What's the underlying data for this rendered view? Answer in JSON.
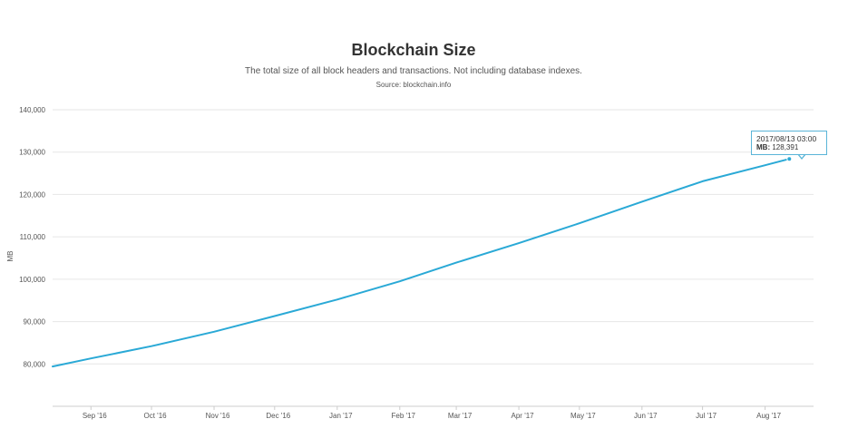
{
  "chart_data": {
    "type": "line",
    "title": "Blockchain Size",
    "subtitle": "The total size of all block headers and transactions. Not including database indexes.",
    "source": "Source: blockchain.info",
    "ylabel": "MB",
    "xlabel": "",
    "ylim": [
      70000,
      140000
    ],
    "y_ticks": [
      {
        "value": 80000,
        "label": "80,000"
      },
      {
        "value": 90000,
        "label": "90,000"
      },
      {
        "value": 100000,
        "label": "100,000"
      },
      {
        "value": 110000,
        "label": "110,000"
      },
      {
        "value": 120000,
        "label": "120,000"
      },
      {
        "value": 130000,
        "label": "130,000"
      },
      {
        "value": 140000,
        "label": "140,000"
      }
    ],
    "x_range": [
      "2016-08-13",
      "2017-08-25"
    ],
    "x_ticks": [
      {
        "date": "2016-09-01",
        "label": "Sep '16"
      },
      {
        "date": "2016-10-01",
        "label": "Oct '16"
      },
      {
        "date": "2016-11-01",
        "label": "Nov '16"
      },
      {
        "date": "2016-12-01",
        "label": "Dec '16"
      },
      {
        "date": "2017-01-01",
        "label": "Jan '17"
      },
      {
        "date": "2017-02-01",
        "label": "Feb '17"
      },
      {
        "date": "2017-03-01",
        "label": "Mar '17"
      },
      {
        "date": "2017-04-01",
        "label": "Apr '17"
      },
      {
        "date": "2017-05-01",
        "label": "May '17"
      },
      {
        "date": "2017-06-01",
        "label": "Jun '17"
      },
      {
        "date": "2017-07-01",
        "label": "Jul '17"
      },
      {
        "date": "2017-08-01",
        "label": "Aug '17"
      }
    ],
    "grid": true,
    "legend": "none",
    "series": [
      {
        "color": "#2aa9d6",
        "points": [
          {
            "x": "2016-08-13",
            "y": 79400
          },
          {
            "x": "2016-09-01",
            "y": 81300
          },
          {
            "x": "2016-10-01",
            "y": 84200
          },
          {
            "x": "2016-11-01",
            "y": 87600
          },
          {
            "x": "2016-12-01",
            "y": 91300
          },
          {
            "x": "2017-01-01",
            "y": 95200
          },
          {
            "x": "2017-02-01",
            "y": 99500
          },
          {
            "x": "2017-03-01",
            "y": 103900
          },
          {
            "x": "2017-04-01",
            "y": 108500
          },
          {
            "x": "2017-05-01",
            "y": 113200
          },
          {
            "x": "2017-06-01",
            "y": 118300
          },
          {
            "x": "2017-07-01",
            "y": 123100
          },
          {
            "x": "2017-08-01",
            "y": 126900
          },
          {
            "x": "2017-08-13",
            "y": 128391
          }
        ]
      }
    ],
    "tooltip": {
      "x": "2017-08-13",
      "date_label": "2017/08/13 03:00",
      "value_key": "MB:",
      "value": "128,391"
    }
  }
}
